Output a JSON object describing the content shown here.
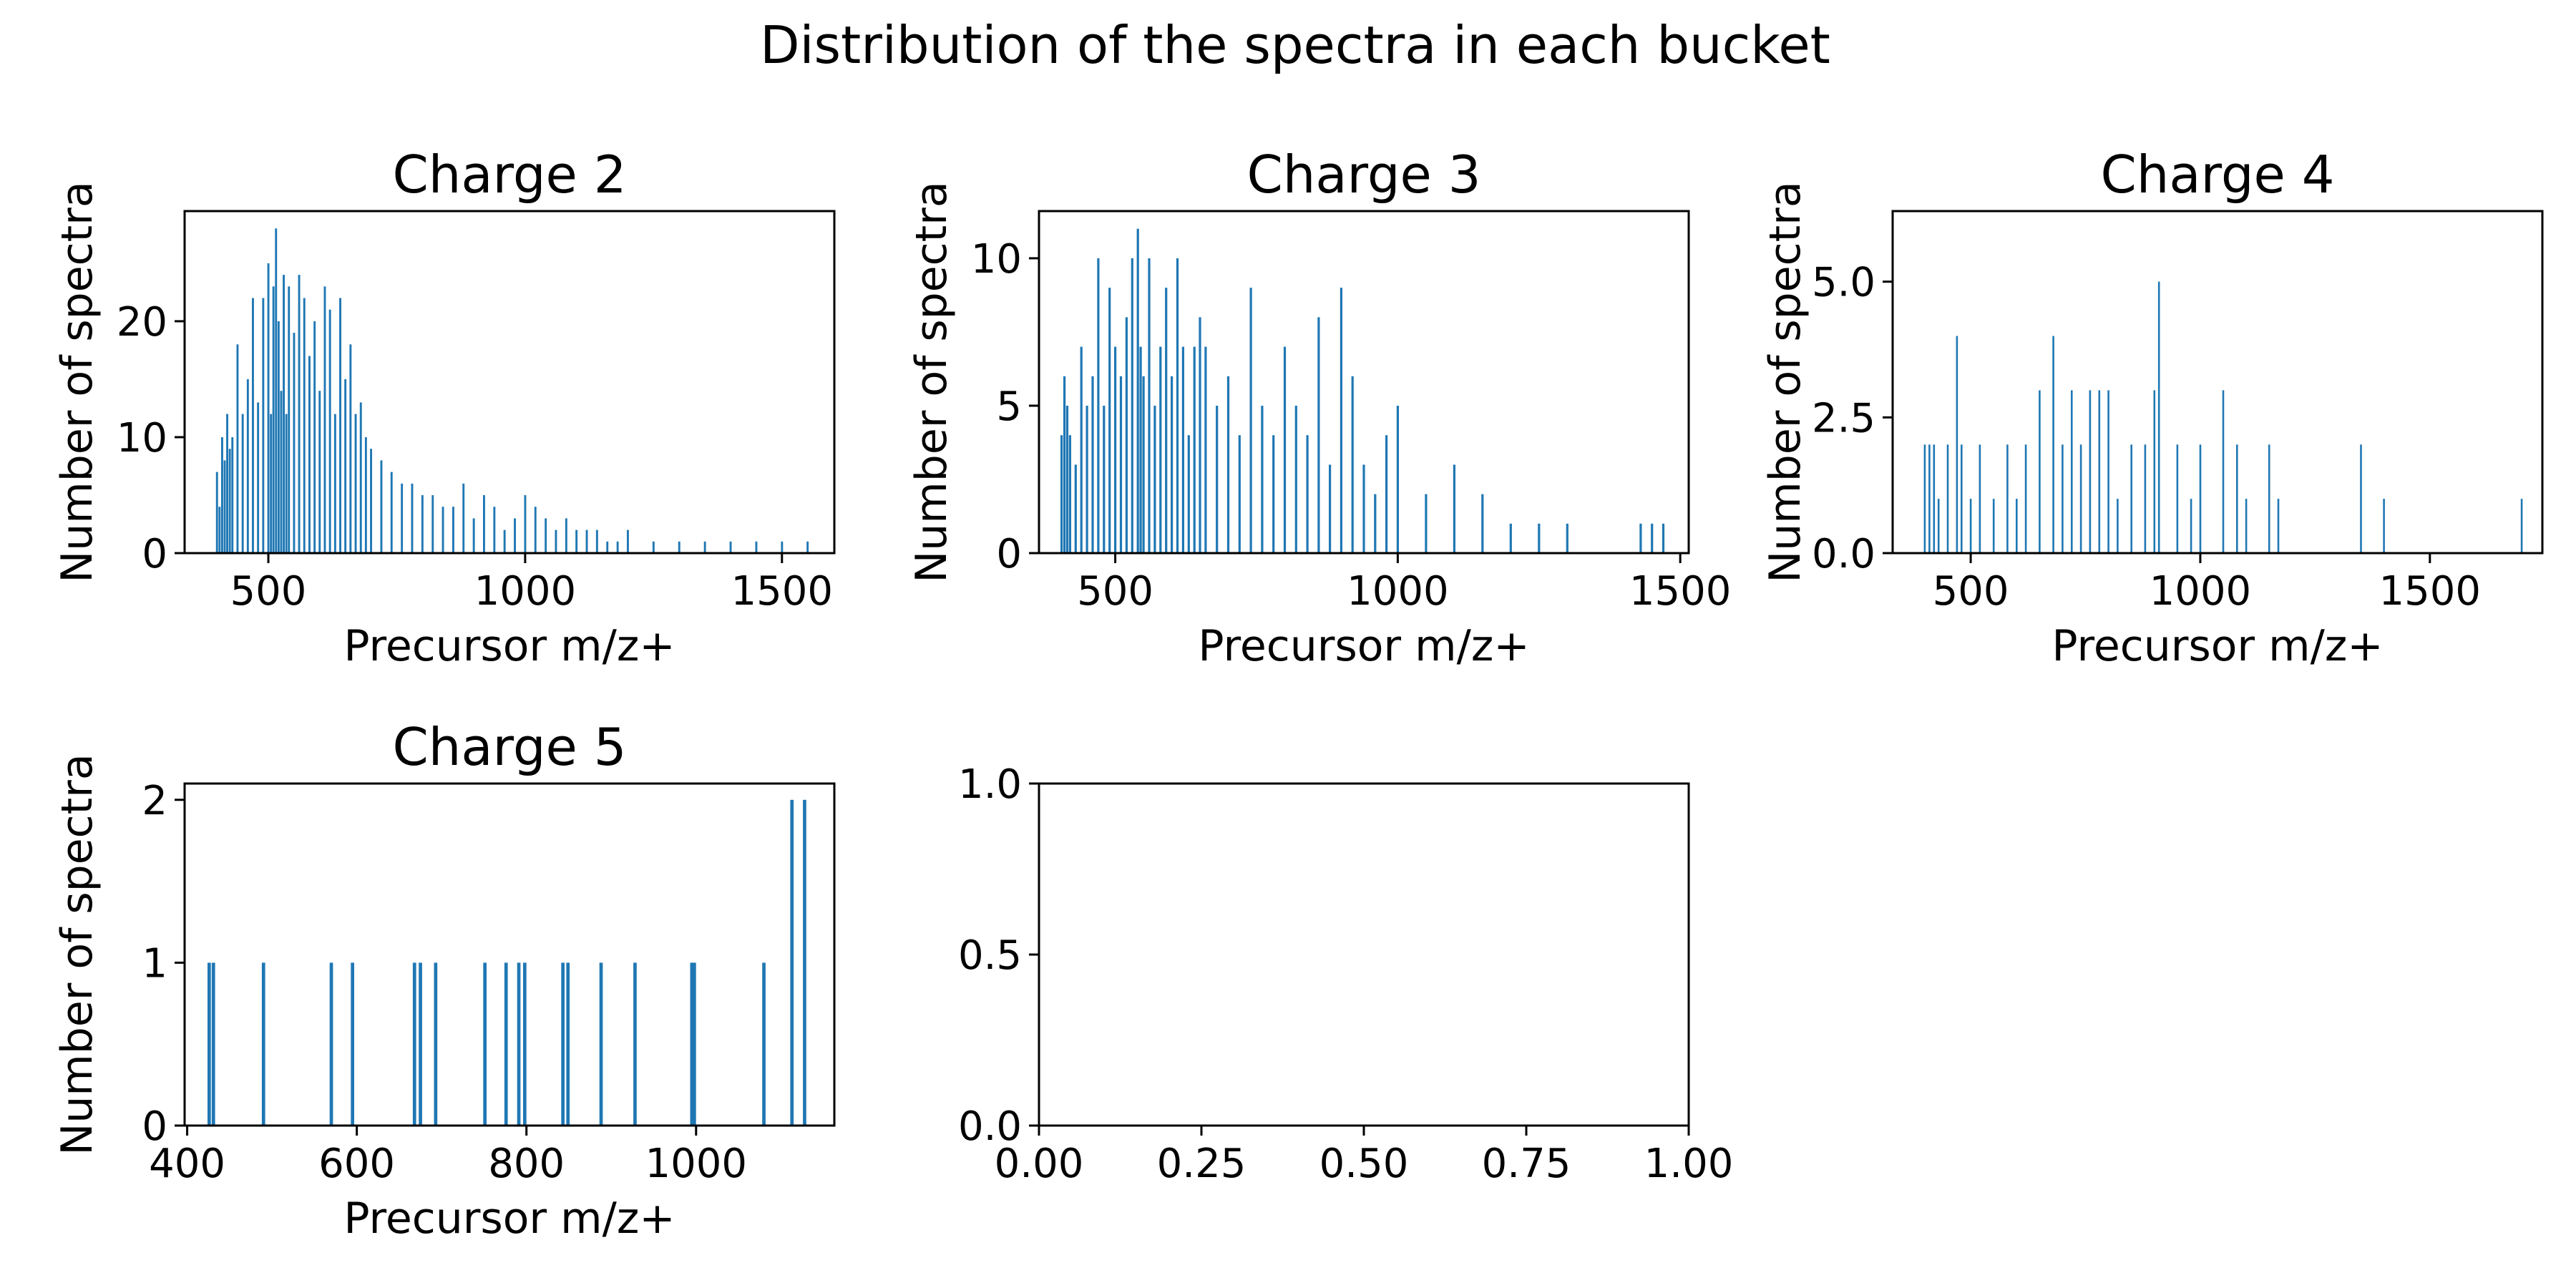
{
  "figure": {
    "suptitle": "Distribution of the spectra in each bucket",
    "bar_color": "#1f77b4"
  },
  "chart_data": [
    {
      "type": "bar",
      "title": "Charge 2",
      "xlabel": "Precursor m/z+",
      "ylabel": "Number of spectra",
      "xlim": [
        337,
        1602
      ],
      "ylim": [
        0,
        29.5
      ],
      "xticks": [
        "500",
        "1000",
        "1500"
      ],
      "xtick_values": [
        500,
        1000,
        1500
      ],
      "yticks": [
        "0",
        "10",
        "20"
      ],
      "ytick_values": [
        0,
        10,
        20
      ],
      "x": [
        400,
        405,
        410,
        415,
        420,
        425,
        430,
        440,
        450,
        460,
        470,
        480,
        490,
        500,
        505,
        510,
        515,
        520,
        525,
        530,
        535,
        540,
        550,
        560,
        570,
        580,
        590,
        600,
        610,
        620,
        630,
        640,
        650,
        660,
        670,
        680,
        690,
        700,
        720,
        740,
        760,
        780,
        800,
        820,
        840,
        860,
        880,
        900,
        920,
        940,
        960,
        980,
        1000,
        1020,
        1040,
        1060,
        1080,
        1100,
        1120,
        1140,
        1160,
        1180,
        1200,
        1250,
        1300,
        1350,
        1400,
        1450,
        1500,
        1550
      ],
      "values": [
        7,
        4,
        10,
        8,
        12,
        9,
        10,
        18,
        12,
        15,
        22,
        13,
        22,
        25,
        12,
        23,
        28,
        20,
        14,
        24,
        12,
        23,
        19,
        24,
        22,
        17,
        20,
        14,
        23,
        21,
        12,
        22,
        15,
        18,
        12,
        13,
        10,
        9,
        8,
        7,
        6,
        6,
        5,
        5,
        4,
        4,
        6,
        3,
        5,
        4,
        2,
        3,
        5,
        4,
        3,
        2,
        3,
        2,
        2,
        2,
        1,
        1,
        2,
        1,
        1,
        1,
        1,
        1,
        1,
        1
      ]
    },
    {
      "type": "bar",
      "title": "Charge 3",
      "xlabel": "Precursor m/z+",
      "ylabel": "Number of spectra",
      "xlim": [
        365,
        1515
      ],
      "ylim": [
        0,
        11.6
      ],
      "xticks": [
        "500",
        "1000",
        "1500"
      ],
      "xtick_values": [
        500,
        1000,
        1500
      ],
      "yticks": [
        "0",
        "5",
        "10"
      ],
      "ytick_values": [
        0,
        5,
        10
      ],
      "x": [
        405,
        410,
        415,
        420,
        430,
        440,
        450,
        460,
        470,
        480,
        490,
        500,
        510,
        520,
        530,
        540,
        545,
        550,
        560,
        570,
        580,
        590,
        600,
        610,
        620,
        630,
        640,
        650,
        660,
        680,
        700,
        720,
        740,
        760,
        780,
        800,
        820,
        840,
        860,
        880,
        900,
        920,
        940,
        960,
        980,
        1000,
        1050,
        1100,
        1150,
        1200,
        1250,
        1300,
        1430,
        1450,
        1470
      ],
      "values": [
        4,
        6,
        5,
        4,
        3,
        7,
        5,
        6,
        10,
        5,
        9,
        7,
        6,
        8,
        10,
        11,
        7,
        6,
        10,
        5,
        7,
        9,
        6,
        10,
        7,
        4,
        7,
        8,
        7,
        5,
        6,
        4,
        9,
        5,
        4,
        7,
        5,
        4,
        8,
        3,
        9,
        6,
        3,
        2,
        4,
        5,
        2,
        3,
        2,
        1,
        1,
        1,
        1,
        1,
        1
      ]
    },
    {
      "type": "bar",
      "title": "Charge 4",
      "xlabel": "Precursor m/z+",
      "ylabel": "Number of spectra",
      "xlim": [
        330,
        1745
      ],
      "ylim": [
        0,
        6.3
      ],
      "xticks": [
        "500",
        "1000",
        "1500"
      ],
      "xtick_values": [
        500,
        1000,
        1500
      ],
      "yticks": [
        "0.0",
        "2.5",
        "5.0"
      ],
      "ytick_values": [
        0,
        2.5,
        5.0
      ],
      "x": [
        400,
        410,
        420,
        430,
        450,
        470,
        480,
        500,
        520,
        550,
        580,
        600,
        620,
        650,
        680,
        700,
        720,
        740,
        760,
        780,
        800,
        820,
        850,
        880,
        900,
        910,
        950,
        980,
        1000,
        1050,
        1080,
        1100,
        1150,
        1170,
        1350,
        1400,
        1700
      ],
      "values": [
        2,
        2,
        2,
        1,
        2,
        4,
        2,
        1,
        2,
        1,
        2,
        1,
        2,
        3,
        4,
        2,
        3,
        2,
        3,
        3,
        3,
        1,
        2,
        2,
        3,
        5,
        2,
        1,
        2,
        3,
        2,
        1,
        2,
        1,
        2,
        1,
        1
      ]
    },
    {
      "type": "bar",
      "title": "Charge 5",
      "xlabel": "Precursor m/z+",
      "ylabel": "Number of spectra",
      "xlim": [
        397,
        1163
      ],
      "ylim": [
        0,
        2.1
      ],
      "xticks": [
        "400",
        "600",
        "800",
        "1000"
      ],
      "xtick_values": [
        400,
        600,
        800,
        1000
      ],
      "yticks": [
        "0",
        "1",
        "2"
      ],
      "ytick_values": [
        0,
        1,
        2
      ],
      "x": [
        426,
        431,
        490,
        570,
        595,
        668,
        675,
        693,
        751,
        776,
        791,
        798,
        843,
        849,
        888,
        928,
        995,
        998,
        1080,
        1113,
        1128
      ],
      "values": [
        1,
        1,
        1,
        1,
        1,
        1,
        1,
        1,
        1,
        1,
        1,
        1,
        1,
        1,
        1,
        1,
        1,
        1,
        1,
        2,
        2
      ]
    },
    {
      "type": "empty",
      "title": "",
      "xlabel": "",
      "ylabel": "",
      "xlim": [
        0,
        1
      ],
      "ylim": [
        0,
        1
      ],
      "xticks": [
        "0.00",
        "0.25",
        "0.50",
        "0.75",
        "1.00"
      ],
      "xtick_values": [
        0,
        0.25,
        0.5,
        0.75,
        1.0
      ],
      "yticks": [
        "0.0",
        "0.5",
        "1.0"
      ],
      "ytick_values": [
        0,
        0.5,
        1.0
      ],
      "x": [],
      "values": []
    }
  ]
}
